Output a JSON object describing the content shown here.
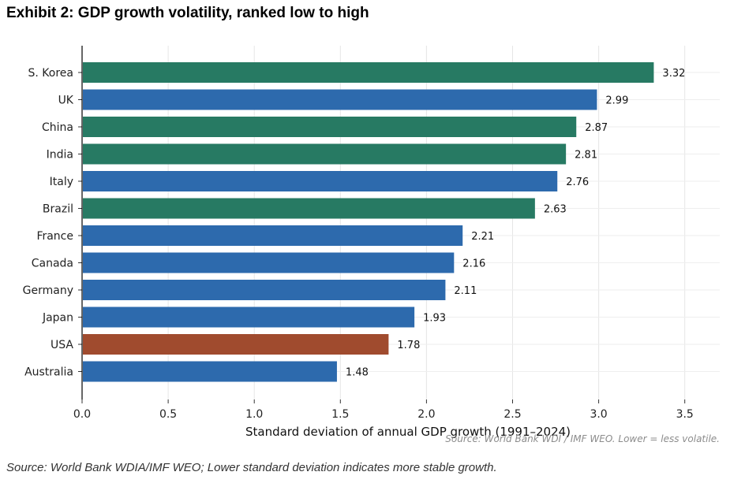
{
  "title": "Exhibit 2: GDP growth volatility, ranked low to high",
  "footer_source": "Source: World Bank WDIA/IMF WEO; Lower standard deviation indicates more stable growth.",
  "chart_data": {
    "type": "bar",
    "orientation": "horizontal",
    "categories": [
      "S. Korea",
      "UK",
      "China",
      "India",
      "Italy",
      "Brazil",
      "France",
      "Canada",
      "Germany",
      "Japan",
      "USA",
      "Australia"
    ],
    "values": [
      3.32,
      2.99,
      2.87,
      2.81,
      2.76,
      2.63,
      2.21,
      2.16,
      2.11,
      1.93,
      1.78,
      1.48
    ],
    "value_labels": [
      "3.32",
      "2.99",
      "2.87",
      "2.81",
      "2.76",
      "2.63",
      "2.21",
      "2.16",
      "2.11",
      "1.93",
      "1.78",
      "1.48"
    ],
    "colors": [
      "#277a63",
      "#2d6aad",
      "#277a63",
      "#277a63",
      "#2d6aad",
      "#277a63",
      "#2d6aad",
      "#2d6aad",
      "#2d6aad",
      "#2d6aad",
      "#a04b2e",
      "#2d6aad"
    ],
    "xlabel": "Standard deviation of annual GDP growth (1991–2024)",
    "xlim": [
      0,
      3.75
    ],
    "xticks": [
      "0.0",
      "0.5",
      "1.0",
      "1.5",
      "2.0",
      "2.5",
      "3.0",
      "3.5"
    ],
    "grid": true,
    "note": "Source: World Bank WDI / IMF WEO. Lower = less volatile."
  }
}
